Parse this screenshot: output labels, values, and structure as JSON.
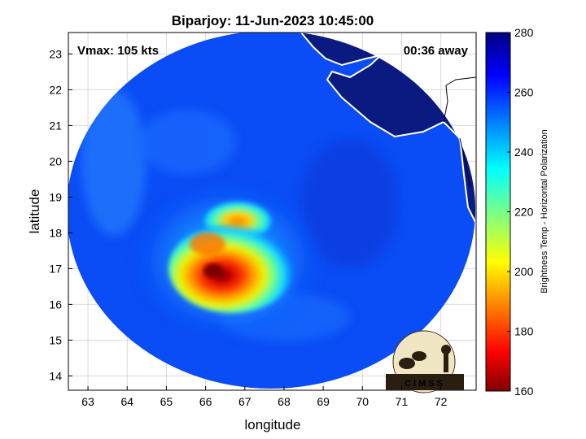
{
  "chart_data": {
    "type": "heatmap",
    "title": "Biparjoy: 11-Jun-2023 10:45:00",
    "xlabel": "longitude",
    "ylabel": "latitude",
    "xlim": [
      62.5,
      72.9
    ],
    "ylim": [
      13.6,
      23.6
    ],
    "x_ticks": [
      63,
      64,
      65,
      66,
      67,
      68,
      69,
      70,
      71,
      72
    ],
    "y_ticks": [
      14,
      15,
      16,
      17,
      18,
      19,
      20,
      21,
      22,
      23
    ],
    "grid": true,
    "annotations": {
      "vmax": "Vmax: 105 kts",
      "time_away": "00:36 away"
    },
    "colorbar": {
      "label": "Brightness Temp - Horizontal Polarization",
      "range": [
        160,
        280
      ],
      "ticks": [
        160,
        180,
        200,
        220,
        240,
        260,
        280
      ],
      "colormap": "jet"
    },
    "storm_center": {
      "lon": 66.1,
      "lat": 16.9
    },
    "min_brightness_temp": 165,
    "background_brightness_temp": 262,
    "land_brightness_temp": 278,
    "logo_text": "CIMSS"
  }
}
